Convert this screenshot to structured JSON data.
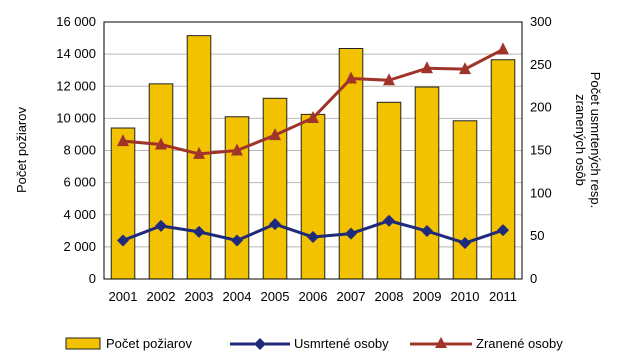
{
  "chart_data": {
    "type": "bar",
    "categories": [
      "2001",
      "2002",
      "2003",
      "2004",
      "2005",
      "2006",
      "2007",
      "2008",
      "2009",
      "2010",
      "2011"
    ],
    "series": [
      {
        "name": "Počet požiarov",
        "kind": "bar",
        "axis": "left",
        "color": "#F2C200",
        "values": [
          9400,
          12150,
          15150,
          10100,
          11250,
          10250,
          14350,
          11000,
          11950,
          9850,
          13650
        ]
      },
      {
        "name": "Usmrtené osoby",
        "kind": "line",
        "axis": "right",
        "color": "#1F2A7A",
        "marker": "diamond",
        "values": [
          45,
          62,
          55,
          45,
          64,
          49,
          53,
          68,
          56,
          42,
          57
        ]
      },
      {
        "name": "Zranené osoby",
        "kind": "line",
        "axis": "right",
        "color": "#A0342A",
        "marker": "triangle",
        "values": [
          161,
          157,
          146,
          150,
          168,
          188,
          234,
          232,
          246,
          245,
          268
        ]
      }
    ],
    "left_axis": {
      "label": "Počet požiarov",
      "min": 0,
      "max": 16000,
      "step": 2000,
      "ticks": [
        "0",
        "2 000",
        "4 000",
        "6 000",
        "8 000",
        "10 000",
        "12 000",
        "14 000",
        "16 000"
      ]
    },
    "right_axis": {
      "label_lines": [
        "Počet usmrtených resp.",
        "zranených osôb"
      ],
      "min": 0,
      "max": 300,
      "step": 50,
      "ticks": [
        "0",
        "50",
        "100",
        "150",
        "200",
        "250",
        "300"
      ]
    },
    "grid": true,
    "legend_position": "bottom"
  }
}
